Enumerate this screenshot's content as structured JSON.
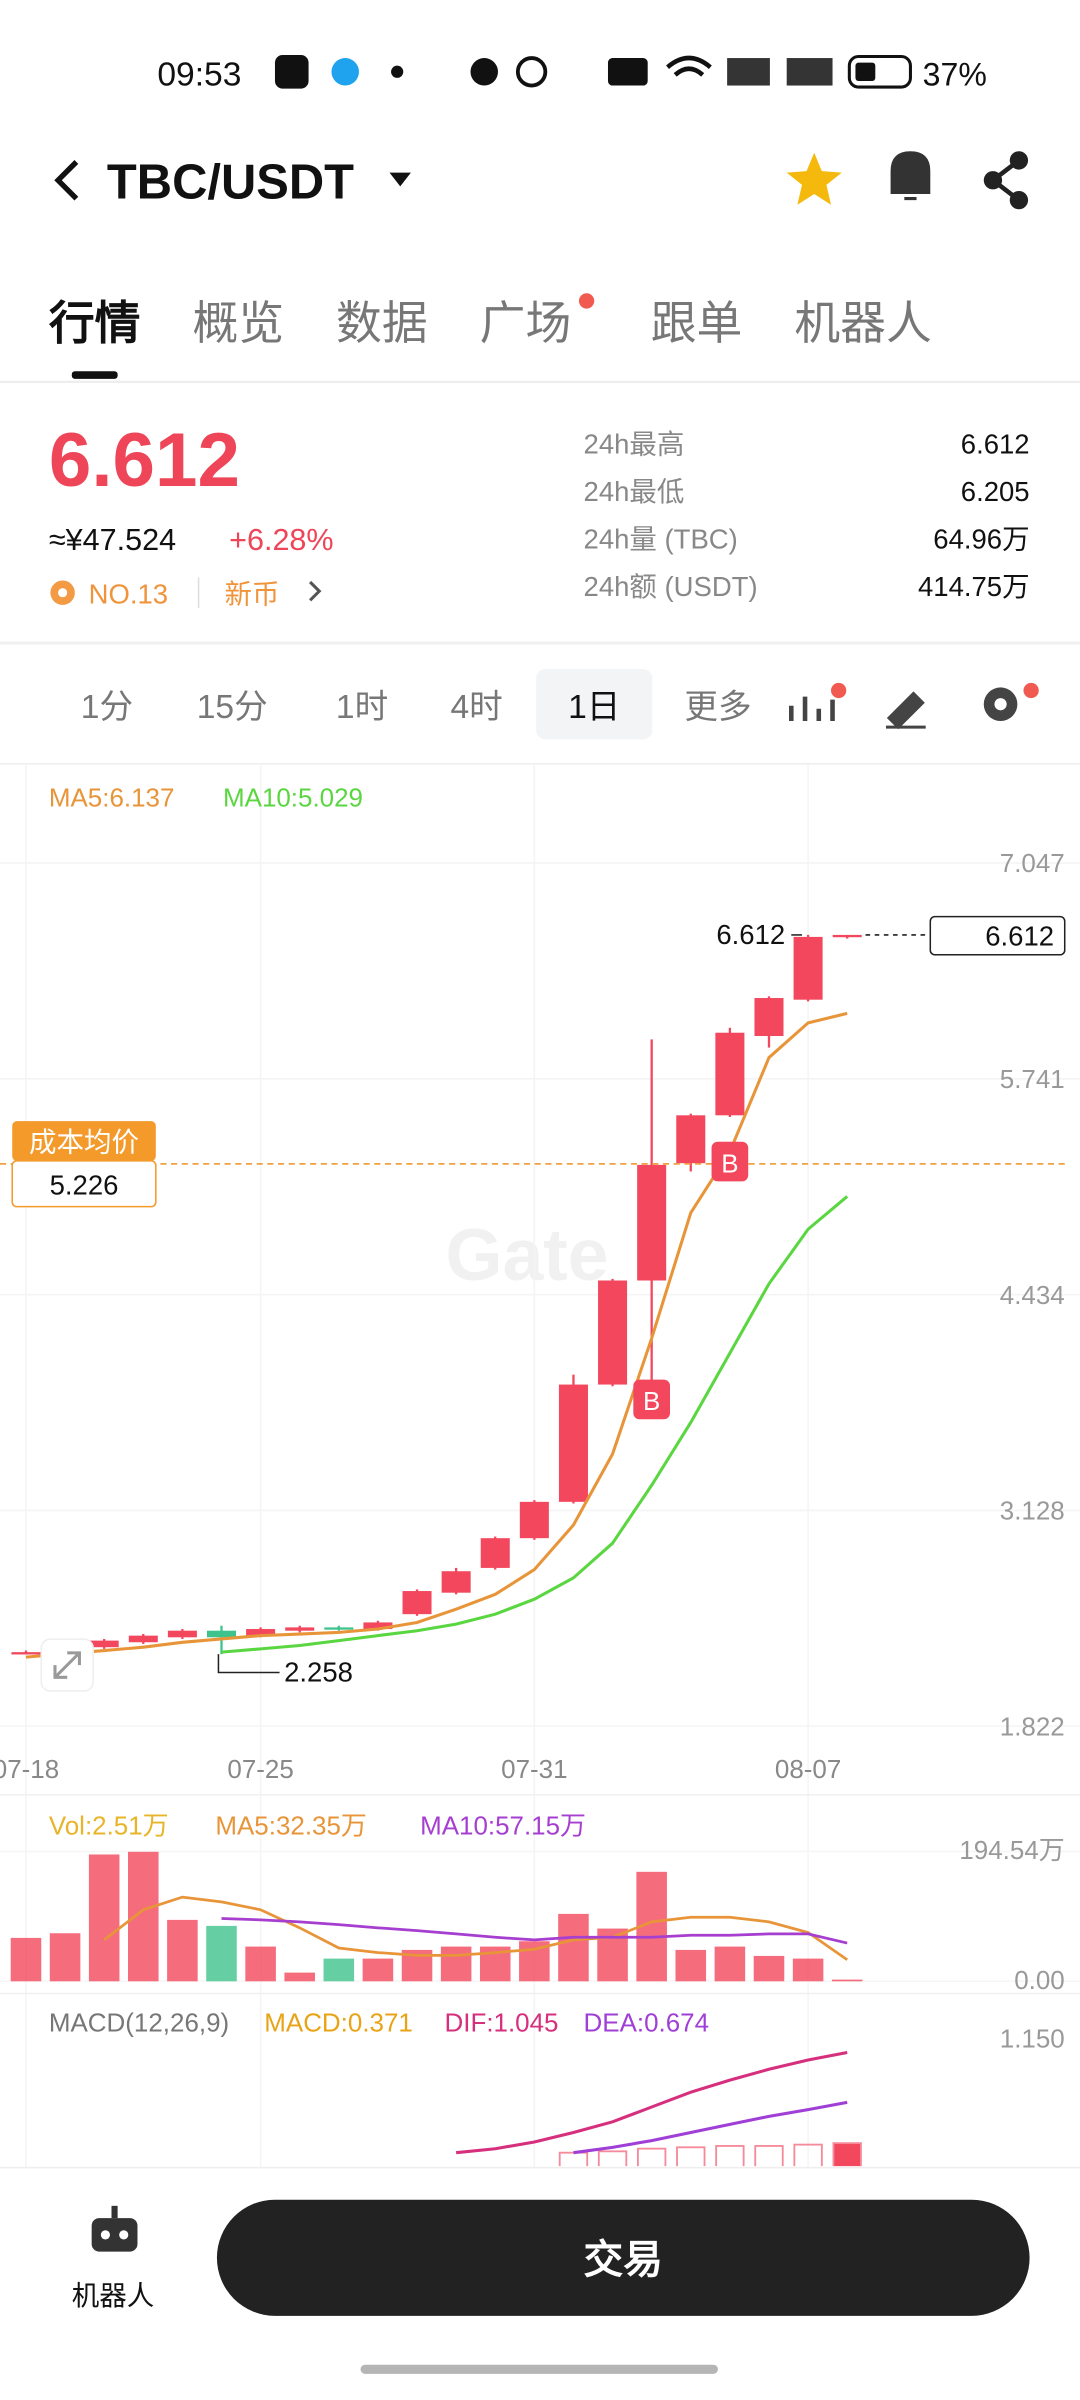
{
  "status_bar": {
    "time": "09:53",
    "battery": "37%"
  },
  "header": {
    "pair": "TBC/USDT"
  },
  "tabs": [
    "行情",
    "概览",
    "数据",
    "广场",
    "跟单",
    "机器人"
  ],
  "price": {
    "last": "6.612",
    "cny": "≈¥47.524",
    "change": "+6.28%",
    "rank": "NO.13",
    "tag": "新币"
  },
  "stats": [
    {
      "label": "24h最高",
      "value": "6.612"
    },
    {
      "label": "24h最低",
      "value": "6.205"
    },
    {
      "label": "24h量 (TBC)",
      "value": "64.96万"
    },
    {
      "label": "24h额 (USDT)",
      "value": "414.75万"
    }
  ],
  "intervals": [
    "1分",
    "15分",
    "1时",
    "4时",
    "1日",
    "更多"
  ],
  "watermark": "Gate",
  "chart_data": [
    {
      "type": "candlestick",
      "up_color": "#f2475d",
      "down_color": "#3fc38c",
      "categories": [
        "07-18",
        null,
        null,
        null,
        null,
        null,
        "07-25",
        null,
        null,
        null,
        null,
        null,
        null,
        "07-31",
        null,
        null,
        null,
        null,
        null,
        null,
        "08-07",
        null
      ],
      "open": [
        2.26,
        2.27,
        2.3,
        2.33,
        2.36,
        2.4,
        2.37,
        2.4,
        2.42,
        2.41,
        2.5,
        2.63,
        2.78,
        2.96,
        3.18,
        3.89,
        4.52,
        5.23,
        5.52,
        6.0,
        6.22,
        6.6
      ],
      "high": [
        2.28,
        2.31,
        2.35,
        2.38,
        2.41,
        2.43,
        2.42,
        2.43,
        2.43,
        2.46,
        2.65,
        2.78,
        2.97,
        3.19,
        3.95,
        4.53,
        5.98,
        5.53,
        6.05,
        6.24,
        6.612,
        6.612
      ],
      "low": [
        2.26,
        2.265,
        2.29,
        2.32,
        2.35,
        2.258,
        2.36,
        2.39,
        2.4,
        2.4,
        2.49,
        2.62,
        2.77,
        2.95,
        3.17,
        3.88,
        3.82,
        5.18,
        5.51,
        5.93,
        6.21,
        6.59
      ],
      "close": [
        2.27,
        2.3,
        2.34,
        2.37,
        2.4,
        2.36,
        2.41,
        2.42,
        2.41,
        2.45,
        2.64,
        2.76,
        2.96,
        3.18,
        3.89,
        4.52,
        5.22,
        5.52,
        6.02,
        6.23,
        6.6,
        6.612
      ],
      "series": [
        {
          "name": "MA5:6.137",
          "color": "#e8953a",
          "values": [
            2.24,
            2.26,
            2.28,
            2.3,
            2.33,
            2.35,
            2.37,
            2.38,
            2.39,
            2.41,
            2.45,
            2.53,
            2.62,
            2.77,
            3.04,
            3.47,
            4.17,
            4.93,
            5.3,
            5.87,
            6.08,
            6.137
          ]
        },
        {
          "name": "MA10:5.029",
          "color": "#5ad641",
          "values": [
            null,
            null,
            null,
            null,
            null,
            2.27,
            2.29,
            2.31,
            2.34,
            2.37,
            2.4,
            2.44,
            2.5,
            2.59,
            2.72,
            2.93,
            3.28,
            3.66,
            4.08,
            4.5,
            4.83,
            5.029
          ]
        }
      ],
      "ylim": [
        1.452,
        7.648
      ],
      "yticks": [
        7.047,
        5.741,
        4.434,
        3.128,
        1.822
      ],
      "grid": true,
      "high_mark": {
        "index": 20,
        "value": 6.612
      },
      "low_mark": {
        "index": 5,
        "value": 2.258
      },
      "last_price": 6.612,
      "cost": {
        "label": "成本均价",
        "value": 5.226
      },
      "trades": [
        {
          "index": 16,
          "price": 3.8,
          "label": "B"
        },
        {
          "index": 18,
          "price": 5.24,
          "label": "B"
        }
      ]
    },
    {
      "type": "bar",
      "series": [
        {
          "name": "Vol:2.51万",
          "values": [
            65,
            72,
            190,
            194,
            92,
            83,
            52,
            13,
            34,
            34,
            47,
            52,
            52,
            60,
            101,
            79,
            164,
            47,
            52,
            38,
            34,
            2.51
          ]
        },
        {
          "name": "MA5:32.35万",
          "color": "#e8953a",
          "values": [
            null,
            null,
            62,
            107,
            126,
            119,
            107,
            80,
            50,
            43,
            39,
            39,
            43,
            48,
            62,
            66,
            89,
            96,
            96,
            89,
            73,
            32.35
          ]
        },
        {
          "name": "MA10:57.15万",
          "color": "#a63fd0",
          "values": [
            null,
            null,
            null,
            null,
            null,
            94,
            92,
            89,
            85,
            80,
            76,
            71,
            66,
            62,
            66,
            66,
            66,
            69,
            69,
            71,
            71,
            57.15
          ]
        }
      ],
      "ylim": [
        0,
        194.54
      ],
      "yticks": [
        {
          "value": 194.54,
          "label": "194.54万"
        },
        {
          "value": 0,
          "label": "0.00"
        }
      ]
    },
    {
      "type": "macd",
      "title": "MACD(12,26,9)",
      "series": [
        {
          "name": "MACD:0.371",
          "color": "#e8a317",
          "values": [
            null,
            null,
            null,
            null,
            null,
            null,
            null,
            null,
            null,
            null,
            null,
            null,
            null,
            null,
            0.3,
            0.31,
            0.33,
            0.34,
            0.35,
            0.35,
            0.36,
            0.371
          ]
        },
        {
          "name": "DIF:1.045",
          "color": "#d62f7d",
          "values": [
            null,
            null,
            null,
            null,
            null,
            null,
            null,
            null,
            null,
            null,
            null,
            0.3,
            0.33,
            0.38,
            0.45,
            0.53,
            0.64,
            0.75,
            0.84,
            0.92,
            0.99,
            1.045
          ]
        },
        {
          "name": "DEA:0.674",
          "color": "#a03fd6",
          "values": [
            null,
            null,
            null,
            null,
            null,
            null,
            null,
            null,
            null,
            null,
            null,
            null,
            null,
            null,
            0.3,
            0.34,
            0.39,
            0.45,
            0.51,
            0.57,
            0.62,
            0.674
          ]
        }
      ],
      "ylim": [
        0.2,
        1.2
      ],
      "yticks": [
        {
          "value": 1.15,
          "label": "1.150"
        }
      ]
    }
  ],
  "bottom_bar": {
    "bot_label": "机器人",
    "trade_button": "交易"
  }
}
